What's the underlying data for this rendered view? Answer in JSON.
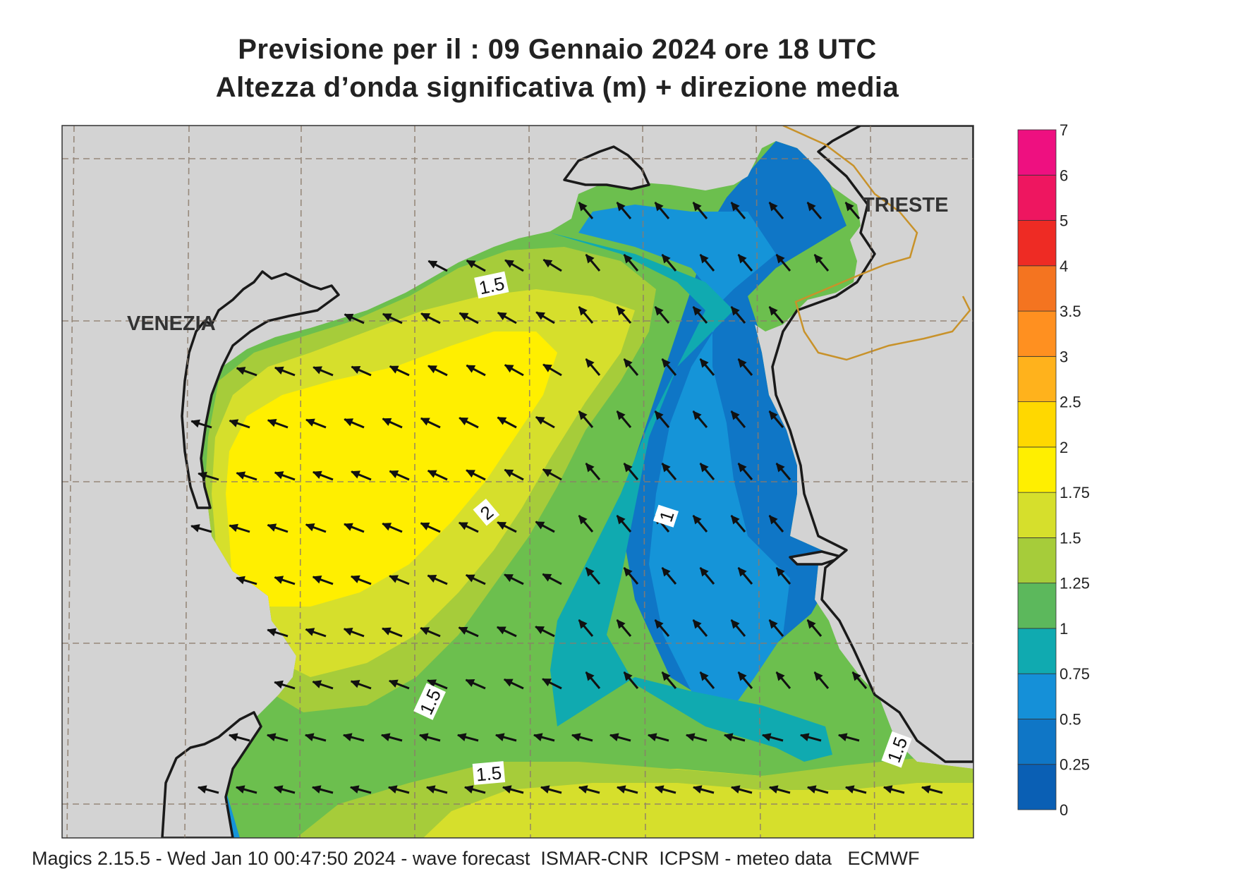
{
  "header": {
    "title_line1": "Previsione per il  :  09  Gennaio  2024   ore 18 UTC",
    "title_line2": "Altezza d’onda significativa (m) + direzione media"
  },
  "map": {
    "cities": [
      {
        "name": "VENEZIA"
      },
      {
        "name": "TRIESTE"
      }
    ],
    "contour_labels": [
      "1.5",
      "2",
      "1",
      "1.5",
      "1.5",
      "1.5"
    ],
    "colors": {
      "land": "#d3d3d3",
      "frame": "#333333",
      "coast": "#1a1a1a",
      "border": "#c8922a",
      "grid": "#8c7b6b"
    }
  },
  "legend": {
    "levels": [
      "0",
      "0.25",
      "0.5",
      "0.75",
      "1",
      "1.25",
      "1.5",
      "1.75",
      "2",
      "2.5",
      "3",
      "3.5",
      "4",
      "5",
      "6",
      "7"
    ],
    "colors": [
      "#0a5fb4",
      "#0f76c6",
      "#1590d8",
      "#10aab0",
      "#5cb85c",
      "#a6cc3a",
      "#d6df2c",
      "#ffef00",
      "#ffd800",
      "#ffb21c",
      "#ff9020",
      "#f47420",
      "#ee2b24",
      "#ee1660",
      "#ee1080"
    ]
  },
  "footer": {
    "text": "Magics 2.15.5 - Wed Jan 10 00:47:50 2024 - wave forecast  ISMAR-CNR  ICPSM - meteo data   ECMWF"
  }
}
